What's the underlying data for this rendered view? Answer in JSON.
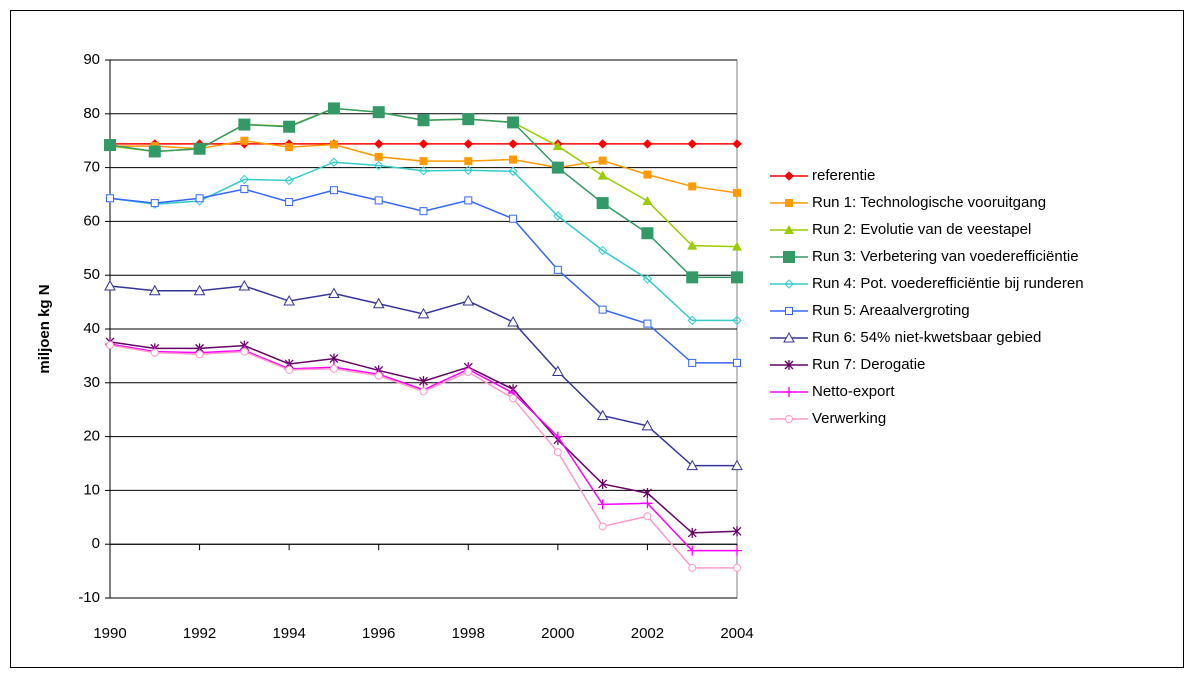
{
  "chart_data": {
    "type": "line",
    "y_label": "miljoen kg N",
    "x": [
      1990,
      1991,
      1992,
      1993,
      1994,
      1995,
      1996,
      1997,
      1998,
      1999,
      2000,
      2001,
      2002,
      2003,
      2004
    ],
    "xlim": [
      1990,
      2004
    ],
    "xticks": [
      1990,
      1992,
      1994,
      1996,
      1998,
      2000,
      2002,
      2004
    ],
    "ylim": [
      -10,
      90
    ],
    "yticks": [
      -10,
      0,
      10,
      20,
      30,
      40,
      50,
      60,
      70,
      80,
      90
    ],
    "grid": true,
    "legend": "right",
    "series": [
      {
        "name": "referentie",
        "color": "#ff0000",
        "marker": "diamond",
        "values": [
          74.4,
          74.4,
          74.4,
          74.4,
          74.4,
          74.4,
          74.4,
          74.4,
          74.4,
          74.4,
          74.4,
          74.4,
          74.4,
          74.4,
          74.4
        ]
      },
      {
        "name": "Run 1: Technologische vooruitgang",
        "color": "#ff9900",
        "marker": "square",
        "values": [
          74,
          74,
          73.5,
          75,
          73.8,
          74.3,
          72,
          71.2,
          71.2,
          71.5,
          70,
          71.3,
          68.7,
          66.5,
          65.3
        ]
      },
      {
        "name": "Run 2: Evolutie van de veestapel",
        "color": "#99cc00",
        "marker": "triangle",
        "values": [
          74,
          73,
          73.5,
          78,
          77.7,
          81,
          80.3,
          78.8,
          79,
          78.4,
          74,
          68.5,
          63.8,
          55.5,
          55.3
        ]
      },
      {
        "name": "Run 3: Verbetering van voederefficiëntie",
        "color": "#339966",
        "marker": "bigsquare",
        "values": [
          74.2,
          73,
          73.5,
          78,
          77.6,
          81,
          80.3,
          78.8,
          79,
          78.4,
          70,
          63.4,
          57.8,
          49.6,
          49.6
        ]
      },
      {
        "name": "Run 4: Pot. voederefficiëntie bij runderen",
        "color": "#33cccc",
        "marker": "odiamond",
        "values": [
          64.3,
          63.2,
          63.8,
          67.8,
          67.6,
          71,
          70.4,
          69.4,
          69.5,
          69.3,
          61,
          54.6,
          49.3,
          41.6,
          41.6
        ]
      },
      {
        "name": "Run 5: Areaalvergroting",
        "color": "#3366ff",
        "marker": "osquare",
        "values": [
          64.3,
          63.4,
          64.3,
          66,
          63.6,
          65.8,
          63.9,
          61.9,
          63.9,
          60.5,
          51,
          43.6,
          41,
          33.7,
          33.7
        ]
      },
      {
        "name": "Run 6: 54% niet-kwetsbaar gebied",
        "color": "#333399",
        "marker": "otriangle",
        "values": [
          48,
          47.1,
          47.1,
          48,
          45.2,
          46.6,
          44.7,
          42.8,
          45.2,
          41.3,
          32.1,
          23.9,
          22,
          14.6,
          14.6
        ]
      },
      {
        "name": "Run 7: Derogatie",
        "color": "#660066",
        "marker": "star",
        "values": [
          37.6,
          36.4,
          36.4,
          36.9,
          33.5,
          34.5,
          32.3,
          30.3,
          32.9,
          28.8,
          19.4,
          11.2,
          9.5,
          2.1,
          2.4
        ]
      },
      {
        "name": "Netto-export",
        "color": "#ff00ff",
        "marker": "plus",
        "values": [
          37.2,
          35.8,
          35.6,
          36,
          32.6,
          32.9,
          31.6,
          28.7,
          32.5,
          28.1,
          20,
          7.4,
          7.6,
          -1.2,
          -1.2
        ]
      },
      {
        "name": "Verwerking",
        "color": "#ff99cc",
        "marker": "ocircle",
        "values": [
          37,
          35.6,
          35.3,
          35.8,
          32.4,
          32.6,
          31.3,
          28.4,
          32,
          27.1,
          17.1,
          3.3,
          5.2,
          -4.4,
          -4.4
        ]
      }
    ]
  }
}
